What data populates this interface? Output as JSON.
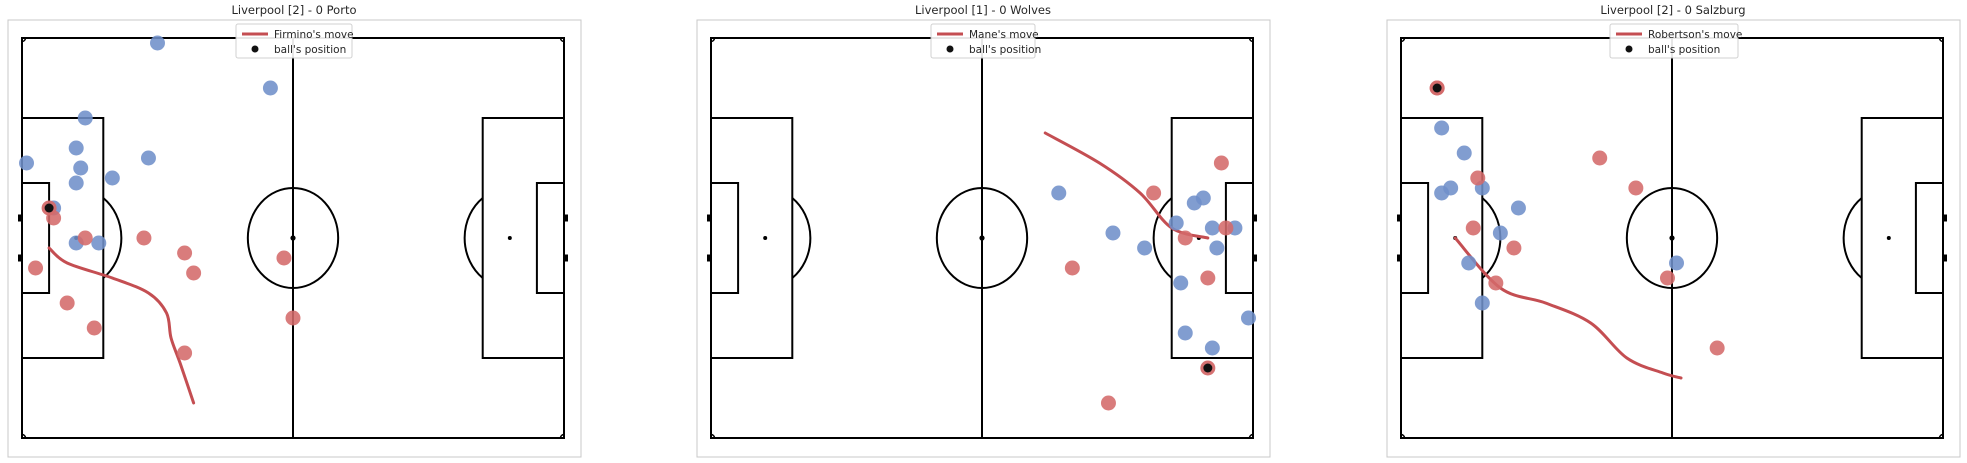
{
  "colors": {
    "home": "#d46a6a",
    "away": "#6f8fc9",
    "move": "#c44e52",
    "ball": "#111111",
    "lines": "#000000",
    "frame": "#c8c8c8"
  },
  "legend": {
    "ball_label": "ball's position"
  },
  "chart_data": [
    {
      "type": "scatter",
      "title": "Liverpool [2] - 0 Porto",
      "legend_move": "Firmino's move",
      "pitch": {
        "xlim": [
          0,
          120
        ],
        "ylim": [
          0,
          80
        ]
      },
      "home_players": [
        [
          7,
          44
        ],
        [
          14,
          40
        ],
        [
          27,
          40
        ],
        [
          36,
          37
        ],
        [
          58,
          36
        ],
        [
          3,
          34
        ],
        [
          10,
          27
        ],
        [
          36,
          17
        ],
        [
          60,
          24
        ],
        [
          16,
          22
        ],
        [
          38,
          33
        ]
      ],
      "away_players": [
        [
          12,
          39
        ],
        [
          17,
          39
        ],
        [
          7,
          46
        ],
        [
          12,
          51
        ],
        [
          13,
          54
        ],
        [
          20,
          52
        ],
        [
          1,
          55
        ],
        [
          12,
          58
        ],
        [
          14,
          64
        ],
        [
          28,
          56
        ],
        [
          55,
          70
        ],
        [
          30,
          79
        ]
      ],
      "ball": [
        6,
        46
      ],
      "move": [
        [
          6,
          38
        ],
        [
          10,
          35
        ],
        [
          20,
          32
        ],
        [
          28,
          29
        ],
        [
          32,
          25
        ],
        [
          33,
          20
        ],
        [
          35,
          15
        ],
        [
          38,
          7
        ]
      ]
    },
    {
      "type": "scatter",
      "title": "Liverpool [1] - 0 Wolves",
      "legend_move": "Mane's move",
      "pitch": {
        "xlim": [
          0,
          120
        ],
        "ylim": [
          0,
          80
        ]
      },
      "home_players": [
        [
          88,
          7
        ],
        [
          80,
          34
        ],
        [
          98,
          49
        ],
        [
          105,
          40
        ],
        [
          110,
          32
        ],
        [
          114,
          42
        ],
        [
          113,
          55
        ]
      ],
      "away_players": [
        [
          77,
          49
        ],
        [
          89,
          41
        ],
        [
          96,
          38
        ],
        [
          103,
          43
        ],
        [
          107,
          47
        ],
        [
          109,
          48
        ],
        [
          111,
          42
        ],
        [
          116,
          42
        ],
        [
          112,
          38
        ],
        [
          104,
          31
        ],
        [
          105,
          21
        ],
        [
          111,
          18
        ],
        [
          119,
          24
        ]
      ],
      "ball": [
        110,
        14
      ],
      "move": [
        [
          74,
          61
        ],
        [
          86,
          55
        ],
        [
          95,
          49
        ],
        [
          102,
          42
        ],
        [
          110,
          40
        ]
      ]
    },
    {
      "type": "scatter",
      "title": "Liverpool [2] - 0 Salzburg",
      "legend_move": "Robertson's move",
      "pitch": {
        "xlim": [
          0,
          120
        ],
        "ylim": [
          0,
          80
        ]
      },
      "home_players": [
        [
          8,
          70
        ],
        [
          17,
          52
        ],
        [
          44,
          56
        ],
        [
          52,
          50
        ],
        [
          25,
          38
        ],
        [
          16,
          42
        ],
        [
          21,
          31
        ],
        [
          59,
          32
        ],
        [
          70,
          18
        ]
      ],
      "away_players": [
        [
          9,
          62
        ],
        [
          14,
          57
        ],
        [
          11,
          50
        ],
        [
          18,
          50
        ],
        [
          9,
          49
        ],
        [
          26,
          46
        ],
        [
          22,
          41
        ],
        [
          15,
          35
        ],
        [
          18,
          27
        ],
        [
          61,
          35
        ]
      ],
      "ball": [
        8,
        70
      ],
      "move": [
        [
          12,
          40
        ],
        [
          22,
          30
        ],
        [
          32,
          27
        ],
        [
          42,
          23
        ],
        [
          50,
          16
        ],
        [
          58,
          13
        ],
        [
          62,
          12
        ]
      ]
    }
  ]
}
